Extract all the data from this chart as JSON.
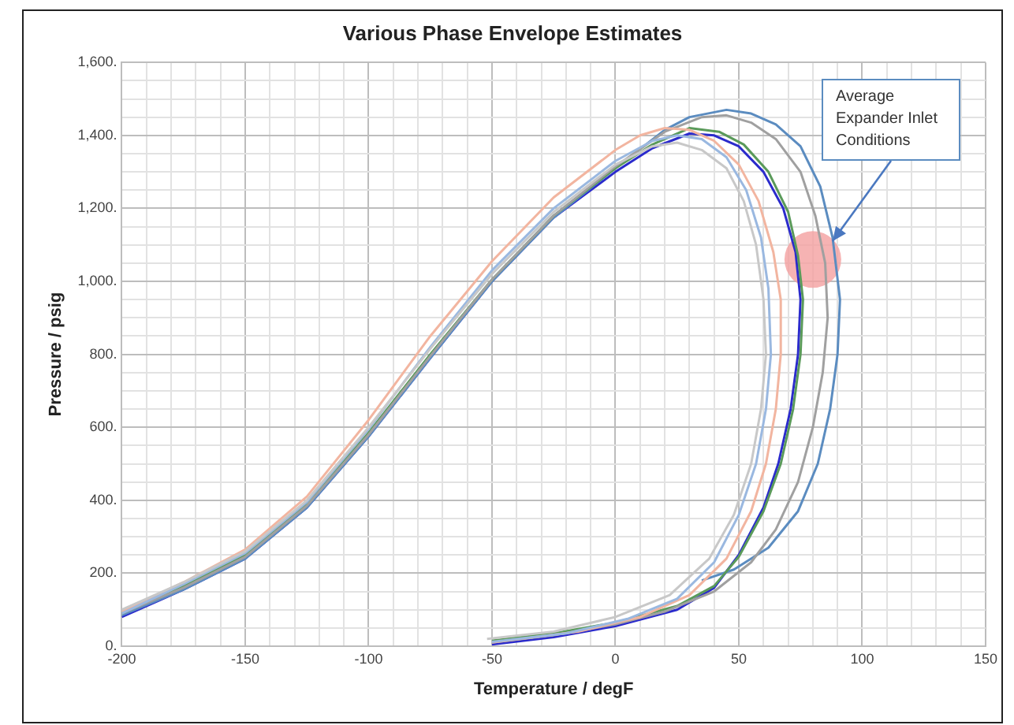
{
  "chart_data": {
    "type": "line",
    "title": "Various Phase Envelope Estimates",
    "xlabel": "Temperature / degF",
    "ylabel": "Pressure / psig",
    "xlim": [
      -200,
      150
    ],
    "ylim": [
      0,
      1600
    ],
    "grid": true,
    "marker": "none",
    "legend": false,
    "xticks": [
      -200,
      {
        "value": -190,
        "label": null
      },
      {
        "value": -180,
        "label": null
      },
      {
        "value": -170,
        "label": null
      },
      {
        "value": -160,
        "label": null
      },
      -150,
      {
        "value": -140,
        "label": null
      },
      {
        "value": -130,
        "label": null
      },
      {
        "value": -120,
        "label": null
      },
      {
        "value": -110,
        "label": null
      },
      -100,
      {
        "value": -90,
        "label": null
      },
      {
        "value": -80,
        "label": null
      },
      {
        "value": -70,
        "label": null
      },
      {
        "value": -60,
        "label": null
      },
      -50,
      {
        "value": -40,
        "label": null
      },
      {
        "value": -30,
        "label": null
      },
      {
        "value": -20,
        "label": null
      },
      {
        "value": -10,
        "label": null
      },
      0,
      {
        "value": 10,
        "label": null
      },
      {
        "value": 20,
        "label": null
      },
      {
        "value": 30,
        "label": null
      },
      {
        "value": 40,
        "label": null
      },
      50,
      {
        "value": 60,
        "label": null
      },
      {
        "value": 70,
        "label": null
      },
      {
        "value": 80,
        "label": null
      },
      {
        "value": 90,
        "label": null
      },
      100,
      {
        "value": 110,
        "label": null
      },
      {
        "value": 120,
        "label": null
      },
      {
        "value": 130,
        "label": null
      },
      {
        "value": 140,
        "label": null
      },
      150
    ],
    "yticks": [
      {
        "value": 0,
        "label": "0."
      },
      {
        "value": 50,
        "label": null
      },
      {
        "value": 100,
        "label": null
      },
      {
        "value": 150,
        "label": null
      },
      {
        "value": 200,
        "label": "200."
      },
      {
        "value": 250,
        "label": null
      },
      {
        "value": 300,
        "label": null
      },
      {
        "value": 350,
        "label": null
      },
      {
        "value": 400,
        "label": "400."
      },
      {
        "value": 450,
        "label": null
      },
      {
        "value": 500,
        "label": null
      },
      {
        "value": 550,
        "label": null
      },
      {
        "value": 600,
        "label": "600."
      },
      {
        "value": 650,
        "label": null
      },
      {
        "value": 700,
        "label": null
      },
      {
        "value": 750,
        "label": null
      },
      {
        "value": 800,
        "label": "800."
      },
      {
        "value": 850,
        "label": null
      },
      {
        "value": 900,
        "label": null
      },
      {
        "value": 950,
        "label": null
      },
      {
        "value": 1000,
        "label": "1,000."
      },
      {
        "value": 1050,
        "label": null
      },
      {
        "value": 1100,
        "label": null
      },
      {
        "value": 1150,
        "label": null
      },
      {
        "value": 1200,
        "label": "1,200."
      },
      {
        "value": 1250,
        "label": null
      },
      {
        "value": 1300,
        "label": null
      },
      {
        "value": 1350,
        "label": null
      },
      {
        "value": 1400,
        "label": "1,400."
      },
      {
        "value": 1450,
        "label": null
      },
      {
        "value": 1500,
        "label": null
      },
      {
        "value": 1550,
        "label": null
      },
      {
        "value": 1600,
        "label": "1,600."
      }
    ],
    "series": [
      {
        "color": "#c8c8c8",
        "x": [
          -200,
          -175,
          -150,
          -125,
          -100,
          -75,
          -50,
          -25,
          0,
          15,
          25,
          35,
          45,
          52,
          57,
          60,
          61,
          59,
          55,
          48,
          38,
          22,
          0,
          -25,
          -52
        ],
        "values": [
          100,
          175,
          260,
          400,
          600,
          815,
          1020,
          1190,
          1320,
          1370,
          1380,
          1360,
          1310,
          1220,
          1100,
          950,
          800,
          650,
          500,
          360,
          240,
          140,
          80,
          40,
          20
        ]
      },
      {
        "color": "#9ab8e0",
        "x": [
          -200,
          -175,
          -150,
          -125,
          -100,
          -75,
          -50,
          -25,
          0,
          15,
          25,
          35,
          45,
          53,
          59,
          62,
          63,
          61,
          57,
          50,
          40,
          25,
          5,
          -20,
          -50
        ],
        "values": [
          90,
          170,
          255,
          395,
          595,
          820,
          1030,
          1200,
          1330,
          1385,
          1400,
          1390,
          1340,
          1250,
          1120,
          980,
          800,
          650,
          500,
          360,
          230,
          130,
          75,
          35,
          12
        ]
      },
      {
        "color": "#f2b5a0",
        "x": [
          -200,
          -175,
          -150,
          -125,
          -100,
          -75,
          -50,
          -25,
          0,
          10,
          20,
          30,
          40,
          50,
          58,
          64,
          67,
          67,
          65,
          61,
          55,
          45,
          30,
          10,
          -15,
          -50
        ],
        "values": [
          95,
          175,
          265,
          410,
          620,
          850,
          1055,
          1230,
          1360,
          1400,
          1420,
          1415,
          1385,
          1320,
          1220,
          1080,
          950,
          800,
          650,
          500,
          370,
          240,
          140,
          80,
          40,
          10
        ]
      },
      {
        "color": "#a0a0a0",
        "x": [
          -200,
          -175,
          -150,
          -125,
          -100,
          -75,
          -50,
          -25,
          0,
          20,
          35,
          45,
          55,
          65,
          75,
          81,
          85,
          86,
          84,
          80,
          74,
          65,
          55,
          40,
          20,
          0,
          -25,
          -50
        ],
        "values": [
          90,
          160,
          245,
          385,
          580,
          795,
          1005,
          1180,
          1315,
          1410,
          1450,
          1455,
          1435,
          1390,
          1300,
          1180,
          1050,
          900,
          750,
          600,
          450,
          320,
          230,
          150,
          95,
          60,
          30,
          10
        ]
      },
      {
        "color": "#5a9a5a",
        "x": [
          -200,
          -175,
          -150,
          -125,
          -100,
          -75,
          -50,
          -25,
          0,
          15,
          30,
          42,
          52,
          62,
          70,
          74,
          76,
          75,
          72,
          67,
          60,
          50,
          40,
          25,
          0,
          -25,
          -50
        ],
        "values": [
          90,
          165,
          250,
          390,
          585,
          800,
          1005,
          1180,
          1310,
          1375,
          1420,
          1410,
          1375,
          1300,
          1190,
          1070,
          950,
          800,
          650,
          500,
          370,
          245,
          165,
          110,
          65,
          35,
          15
        ]
      },
      {
        "color": "#5b8cc0",
        "x": [
          -200,
          -175,
          -150,
          -125,
          -100,
          -75,
          -50,
          -25,
          0,
          20,
          30,
          45,
          55,
          65,
          75,
          83,
          88,
          91,
          90,
          87,
          82,
          74,
          62,
          48,
          35
        ],
        "values": [
          85,
          155,
          240,
          380,
          575,
          790,
          1000,
          1175,
          1310,
          1415,
          1450,
          1470,
          1460,
          1430,
          1370,
          1260,
          1120,
          950,
          800,
          650,
          500,
          370,
          270,
          210,
          180
        ]
      },
      {
        "color": "#2b2bcc",
        "x": [
          -200,
          -175,
          -150,
          -125,
          -100,
          -75,
          -50,
          -25,
          0,
          15,
          30,
          40,
          50,
          60,
          68,
          73,
          75,
          74,
          71,
          66,
          60,
          50,
          40,
          25,
          0,
          -25,
          -50
        ],
        "values": [
          80,
          155,
          240,
          380,
          575,
          790,
          1000,
          1175,
          1300,
          1365,
          1405,
          1400,
          1370,
          1300,
          1200,
          1080,
          950,
          800,
          650,
          500,
          380,
          250,
          160,
          100,
          55,
          25,
          5
        ]
      },
      {
        "type": "scatter",
        "marker": "circle",
        "color": "#f4a0a0",
        "x": [
          80
        ],
        "values": [
          1060
        ]
      }
    ],
    "annotations": [
      {
        "text": "Average Expander Inlet Conditions",
        "x": 88,
        "y": 1110
      }
    ]
  }
}
